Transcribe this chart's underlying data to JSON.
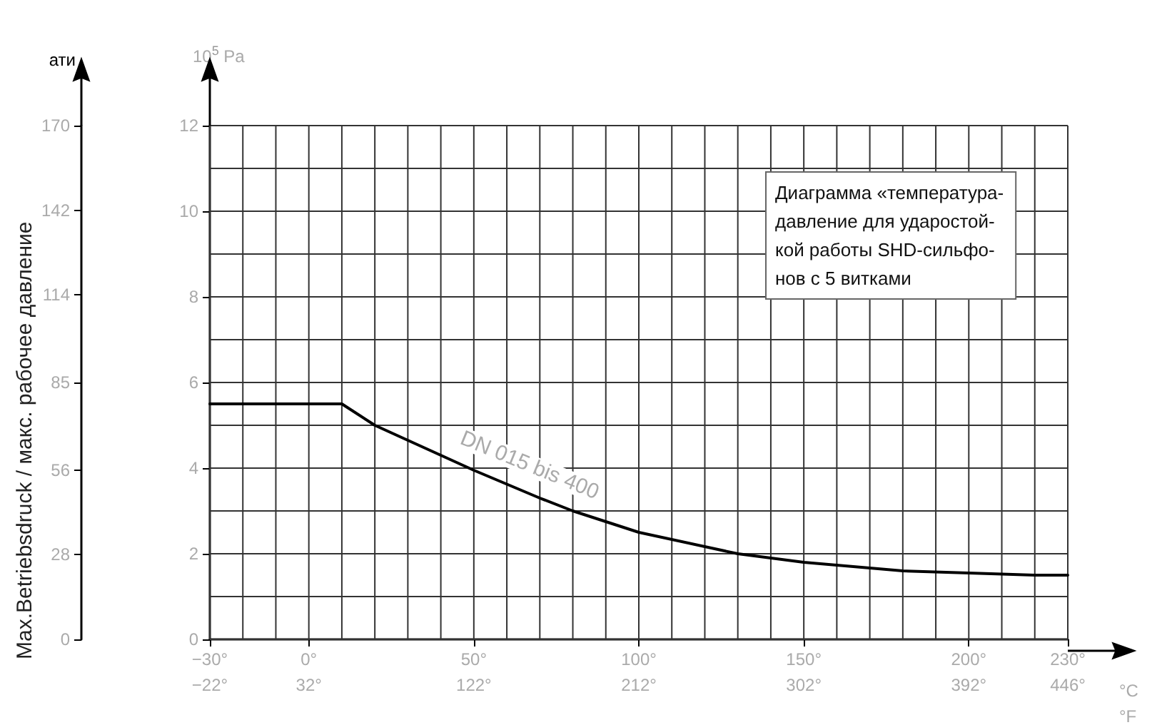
{
  "chart_data": {
    "type": "line",
    "xlabel": "°C",
    "x2label": "°F",
    "ylabel": "10$^{5}$ Pa",
    "y2label": "ати",
    "annotations": [
      "Max.Betriebsdruck / макс. рабочее давление",
      "Диаграмма «температура-\nдавление для ударостой-\nкой работы SHD-сильфо-\nнов с 5 витками"
    ],
    "xlim": [
      -30,
      230
    ],
    "xticks": [
      {
        "value": -30,
        "label": "−30°"
      },
      {
        "value": -20,
        "label": null
      },
      {
        "value": -10,
        "label": null
      },
      {
        "value": 0,
        "label": "0°"
      },
      {
        "value": 10,
        "label": null
      },
      {
        "value": 20,
        "label": null
      },
      {
        "value": 30,
        "label": null
      },
      {
        "value": 40,
        "label": null
      },
      {
        "value": 50,
        "label": "50°"
      },
      {
        "value": 60,
        "label": null
      },
      {
        "value": 70,
        "label": null
      },
      {
        "value": 80,
        "label": null
      },
      {
        "value": 90,
        "label": null
      },
      {
        "value": 100,
        "label": "100°"
      },
      {
        "value": 110,
        "label": null
      },
      {
        "value": 120,
        "label": null
      },
      {
        "value": 130,
        "label": null
      },
      {
        "value": 140,
        "label": null
      },
      {
        "value": 150,
        "label": "150°"
      },
      {
        "value": 160,
        "label": null
      },
      {
        "value": 170,
        "label": null
      },
      {
        "value": 180,
        "label": null
      },
      {
        "value": 190,
        "label": null
      },
      {
        "value": 200,
        "label": "200°"
      },
      {
        "value": 210,
        "label": null
      },
      {
        "value": 220,
        "label": null
      },
      {
        "value": 230,
        "label": "230°"
      }
    ],
    "x2lim": [
      -22,
      446
    ],
    "x2ticks": [
      {
        "value": -22,
        "label": "−22°"
      },
      {
        "value": 32,
        "label": "32°"
      },
      {
        "value": 122,
        "label": "122°"
      },
      {
        "value": 212,
        "label": "212°"
      },
      {
        "value": 302,
        "label": "302°"
      },
      {
        "value": 392,
        "label": "392°"
      },
      {
        "value": 446,
        "label": "446°"
      }
    ],
    "ylim": [
      0,
      12
    ],
    "yticks": [
      0,
      {
        "value": 1,
        "label": null
      },
      2,
      {
        "value": 3,
        "label": null
      },
      4,
      {
        "value": 5,
        "label": null
      },
      6,
      {
        "value": 7,
        "label": null
      },
      8,
      {
        "value": 9,
        "label": null
      },
      10,
      {
        "value": 11,
        "label": null
      },
      12
    ],
    "y2lim": [
      0,
      170
    ],
    "y2ticks": [
      0,
      28,
      56,
      85,
      114,
      142,
      170
    ],
    "grid": true,
    "legend": false,
    "marker": "none",
    "line_style": "solid",
    "series": [
      {
        "name": "DN 015 bis 400",
        "color": "#000000",
        "x": [
          -30,
          10,
          20,
          30,
          50,
          70,
          80,
          100,
          130,
          150,
          180,
          200,
          220,
          230
        ],
        "values": [
          5.5,
          5.5,
          5.0,
          4.65,
          3.95,
          3.3,
          3.0,
          2.5,
          2.0,
          1.8,
          1.6,
          1.55,
          1.5,
          1.5
        ]
      }
    ]
  }
}
